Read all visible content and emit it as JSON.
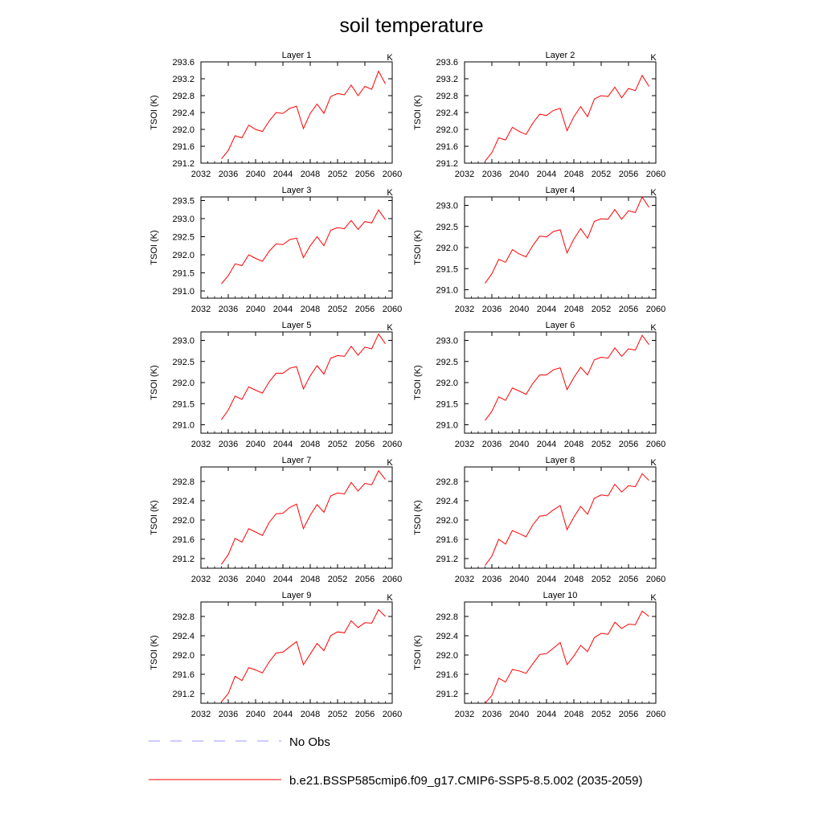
{
  "title": "soil temperature",
  "legend": [
    {
      "label": "No Obs",
      "color": "#9999ff",
      "style": "dashed"
    },
    {
      "label": "b.e21.BSSP585cmip6.f09_g17.CMIP6-SSP5-8.5.002 (2035-2059)",
      "color": "#ff0000",
      "style": "solid"
    }
  ],
  "chart_data": [
    {
      "type": "line",
      "title": "Layer 1",
      "units": "K",
      "ylabel": "TSOI  (K)",
      "xlim": [
        2032,
        2060
      ],
      "ylim": [
        291.2,
        293.6
      ],
      "xticks": [
        2032,
        2036,
        2040,
        2044,
        2048,
        2052,
        2056,
        2060
      ],
      "yticks": [
        "291.2",
        "291.6",
        "292.0",
        "292.4",
        "292.8",
        "293.2",
        "293.6"
      ],
      "x": [
        2035,
        2036,
        2037,
        2038,
        2039,
        2040,
        2041,
        2042,
        2043,
        2044,
        2045,
        2046,
        2047,
        2048,
        2049,
        2050,
        2051,
        2052,
        2053,
        2054,
        2055,
        2056,
        2057,
        2058,
        2059
      ],
      "series": [
        {
          "name": "b.e21.BSSP585cmip6.f09_g17.CMIP6-SSP5-8.5.002 (2035-2059)",
          "color": "#ff0000",
          "values": [
            291.3,
            291.5,
            291.85,
            291.8,
            292.1,
            292.0,
            291.95,
            292.2,
            292.4,
            292.38,
            292.5,
            292.55,
            292.02,
            292.38,
            292.6,
            292.38,
            292.78,
            292.85,
            292.82,
            293.05,
            292.8,
            293.02,
            292.95,
            293.38,
            293.08
          ]
        }
      ]
    },
    {
      "type": "line",
      "title": "Layer 2",
      "units": "K",
      "ylabel": "TSOI  (K)",
      "xlim": [
        2032,
        2060
      ],
      "ylim": [
        291.2,
        293.6
      ],
      "xticks": [
        2032,
        2036,
        2040,
        2044,
        2048,
        2052,
        2056,
        2060
      ],
      "yticks": [
        "291.2",
        "291.6",
        "292.0",
        "292.4",
        "292.8",
        "293.2",
        "293.6"
      ],
      "x": [
        2035,
        2036,
        2037,
        2038,
        2039,
        2040,
        2041,
        2042,
        2043,
        2044,
        2045,
        2046,
        2047,
        2048,
        2049,
        2050,
        2051,
        2052,
        2053,
        2054,
        2055,
        2056,
        2057,
        2058,
        2059
      ],
      "series": [
        {
          "name": "b.e21.BSSP585cmip6.f09_g17.CMIP6-SSP5-8.5.002 (2035-2059)",
          "color": "#ff0000",
          "values": [
            291.25,
            291.45,
            291.8,
            291.75,
            292.05,
            291.95,
            291.88,
            292.15,
            292.36,
            292.33,
            292.45,
            292.5,
            291.97,
            292.3,
            292.54,
            292.3,
            292.72,
            292.8,
            292.78,
            293.0,
            292.75,
            292.97,
            292.92,
            293.28,
            293.02
          ]
        }
      ]
    },
    {
      "type": "line",
      "title": "Layer 3",
      "units": "K",
      "ylabel": "TSOI  (K)",
      "xlim": [
        2032,
        2060
      ],
      "ylim": [
        290.8,
        293.6
      ],
      "xticks": [
        2032,
        2036,
        2040,
        2044,
        2048,
        2052,
        2056,
        2060
      ],
      "yticks": [
        "291.0",
        "291.5",
        "292.0",
        "292.5",
        "293.0",
        "293.5"
      ],
      "x": [
        2035,
        2036,
        2037,
        2038,
        2039,
        2040,
        2041,
        2042,
        2043,
        2044,
        2045,
        2046,
        2047,
        2048,
        2049,
        2050,
        2051,
        2052,
        2053,
        2054,
        2055,
        2056,
        2057,
        2058,
        2059
      ],
      "series": [
        {
          "name": "b.e21.BSSP585cmip6.f09_g17.CMIP6-SSP5-8.5.002 (2035-2059)",
          "color": "#ff0000",
          "values": [
            291.2,
            291.42,
            291.75,
            291.7,
            292.0,
            291.9,
            291.82,
            292.1,
            292.3,
            292.28,
            292.42,
            292.46,
            291.92,
            292.25,
            292.5,
            292.25,
            292.68,
            292.75,
            292.72,
            292.95,
            292.7,
            292.92,
            292.88,
            293.24,
            292.97
          ]
        }
      ]
    },
    {
      "type": "line",
      "title": "Layer 4",
      "units": "K",
      "ylabel": "TSOI  (K)",
      "xlim": [
        2032,
        2060
      ],
      "ylim": [
        290.8,
        293.2
      ],
      "xticks": [
        2032,
        2036,
        2040,
        2044,
        2048,
        2052,
        2056,
        2060
      ],
      "yticks": [
        "291.0",
        "291.5",
        "292.0",
        "292.5",
        "293.0"
      ],
      "x": [
        2035,
        2036,
        2037,
        2038,
        2039,
        2040,
        2041,
        2042,
        2043,
        2044,
        2045,
        2046,
        2047,
        2048,
        2049,
        2050,
        2051,
        2052,
        2053,
        2054,
        2055,
        2056,
        2057,
        2058,
        2059
      ],
      "series": [
        {
          "name": "b.e21.BSSP585cmip6.f09_g17.CMIP6-SSP5-8.5.002 (2035-2059)",
          "color": "#ff0000",
          "values": [
            291.15,
            291.38,
            291.72,
            291.65,
            291.95,
            291.85,
            291.78,
            292.05,
            292.27,
            292.25,
            292.38,
            292.42,
            291.87,
            292.2,
            292.45,
            292.22,
            292.62,
            292.68,
            292.67,
            292.9,
            292.67,
            292.87,
            292.83,
            293.2,
            292.95
          ]
        }
      ]
    },
    {
      "type": "line",
      "title": "Layer 5",
      "units": "K",
      "ylabel": "TSOI  (K)",
      "xlim": [
        2032,
        2060
      ],
      "ylim": [
        290.8,
        293.2
      ],
      "xticks": [
        2032,
        2036,
        2040,
        2044,
        2048,
        2052,
        2056,
        2060
      ],
      "yticks": [
        "291.0",
        "291.5",
        "292.0",
        "292.5",
        "293.0"
      ],
      "x": [
        2035,
        2036,
        2037,
        2038,
        2039,
        2040,
        2041,
        2042,
        2043,
        2044,
        2045,
        2046,
        2047,
        2048,
        2049,
        2050,
        2051,
        2052,
        2053,
        2054,
        2055,
        2056,
        2057,
        2058,
        2059
      ],
      "series": [
        {
          "name": "b.e21.BSSP585cmip6.f09_g17.CMIP6-SSP5-8.5.002 (2035-2059)",
          "color": "#ff0000",
          "values": [
            291.12,
            291.35,
            291.68,
            291.6,
            291.9,
            291.82,
            291.75,
            292.02,
            292.22,
            292.22,
            292.34,
            292.38,
            291.85,
            292.16,
            292.4,
            292.2,
            292.58,
            292.64,
            292.62,
            292.86,
            292.65,
            292.84,
            292.8,
            293.15,
            292.92
          ]
        }
      ]
    },
    {
      "type": "line",
      "title": "Layer 6",
      "units": "K",
      "ylabel": "TSOI  (K)",
      "xlim": [
        2032,
        2060
      ],
      "ylim": [
        290.8,
        293.2
      ],
      "xticks": [
        2032,
        2036,
        2040,
        2044,
        2048,
        2052,
        2056,
        2060
      ],
      "yticks": [
        "291.0",
        "291.5",
        "292.0",
        "292.5",
        "293.0"
      ],
      "x": [
        2035,
        2036,
        2037,
        2038,
        2039,
        2040,
        2041,
        2042,
        2043,
        2044,
        2045,
        2046,
        2047,
        2048,
        2049,
        2050,
        2051,
        2052,
        2053,
        2054,
        2055,
        2056,
        2057,
        2058,
        2059
      ],
      "series": [
        {
          "name": "b.e21.BSSP585cmip6.f09_g17.CMIP6-SSP5-8.5.002 (2035-2059)",
          "color": "#ff0000",
          "values": [
            291.1,
            291.32,
            291.66,
            291.58,
            291.87,
            291.8,
            291.72,
            291.98,
            292.18,
            292.18,
            292.3,
            292.35,
            291.83,
            292.12,
            292.36,
            292.18,
            292.54,
            292.6,
            292.58,
            292.82,
            292.62,
            292.8,
            292.77,
            293.12,
            292.9
          ]
        }
      ]
    },
    {
      "type": "line",
      "title": "Layer 7",
      "units": "K",
      "ylabel": "TSOI  (K)",
      "xlim": [
        2032,
        2060
      ],
      "ylim": [
        291.0,
        293.1
      ],
      "xticks": [
        2032,
        2036,
        2040,
        2044,
        2048,
        2052,
        2056,
        2060
      ],
      "yticks": [
        "291.2",
        "291.6",
        "292.0",
        "292.4",
        "292.8"
      ],
      "x": [
        2035,
        2036,
        2037,
        2038,
        2039,
        2040,
        2041,
        2042,
        2043,
        2044,
        2045,
        2046,
        2047,
        2048,
        2049,
        2050,
        2051,
        2052,
        2053,
        2054,
        2055,
        2056,
        2057,
        2058,
        2059
      ],
      "series": [
        {
          "name": "b.e21.BSSP585cmip6.f09_g17.CMIP6-SSP5-8.5.002 (2035-2059)",
          "color": "#ff0000",
          "values": [
            291.08,
            291.28,
            291.62,
            291.54,
            291.82,
            291.75,
            291.68,
            291.95,
            292.13,
            292.14,
            292.26,
            292.33,
            291.82,
            292.1,
            292.32,
            292.16,
            292.5,
            292.56,
            292.54,
            292.78,
            292.6,
            292.76,
            292.73,
            293.02,
            292.84
          ]
        }
      ]
    },
    {
      "type": "line",
      "title": "Layer 8",
      "units": "K",
      "ylabel": "TSOI  (K)",
      "xlim": [
        2032,
        2060
      ],
      "ylim": [
        291.0,
        293.1
      ],
      "xticks": [
        2032,
        2036,
        2040,
        2044,
        2048,
        2052,
        2056,
        2060
      ],
      "yticks": [
        "291.2",
        "291.6",
        "292.0",
        "292.4",
        "292.8"
      ],
      "x": [
        2035,
        2036,
        2037,
        2038,
        2039,
        2040,
        2041,
        2042,
        2043,
        2044,
        2045,
        2046,
        2047,
        2048,
        2049,
        2050,
        2051,
        2052,
        2053,
        2054,
        2055,
        2056,
        2057,
        2058,
        2059
      ],
      "series": [
        {
          "name": "b.e21.BSSP585cmip6.f09_g17.CMIP6-SSP5-8.5.002 (2035-2059)",
          "color": "#ff0000",
          "values": [
            291.06,
            291.25,
            291.6,
            291.5,
            291.78,
            291.72,
            291.65,
            291.9,
            292.08,
            292.1,
            292.21,
            292.3,
            291.8,
            292.06,
            292.28,
            292.12,
            292.45,
            292.52,
            292.5,
            292.74,
            292.58,
            292.71,
            292.69,
            292.96,
            292.82
          ]
        }
      ]
    },
    {
      "type": "line",
      "title": "Layer 9",
      "units": "K",
      "ylabel": "TSOI  (K)",
      "xlim": [
        2032,
        2060
      ],
      "ylim": [
        291.0,
        293.1
      ],
      "xticks": [
        2032,
        2036,
        2040,
        2044,
        2048,
        2052,
        2056,
        2060
      ],
      "yticks": [
        "291.2",
        "291.6",
        "292.0",
        "292.4",
        "292.8"
      ],
      "x": [
        2035,
        2036,
        2037,
        2038,
        2039,
        2040,
        2041,
        2042,
        2043,
        2044,
        2045,
        2046,
        2047,
        2048,
        2049,
        2050,
        2051,
        2052,
        2053,
        2054,
        2055,
        2056,
        2057,
        2058,
        2059
      ],
      "series": [
        {
          "name": "b.e21.BSSP585cmip6.f09_g17.CMIP6-SSP5-8.5.002 (2035-2059)",
          "color": "#ff0000",
          "values": [
            291.03,
            291.2,
            291.56,
            291.47,
            291.74,
            291.69,
            291.63,
            291.86,
            292.04,
            292.06,
            292.17,
            292.28,
            291.8,
            292.02,
            292.24,
            292.09,
            292.4,
            292.48,
            292.46,
            292.71,
            292.57,
            292.67,
            292.66,
            292.94,
            292.8
          ]
        }
      ]
    },
    {
      "type": "line",
      "title": "Layer 10",
      "units": "K",
      "ylabel": "TSOI  (K)",
      "xlim": [
        2032,
        2060
      ],
      "ylim": [
        291.0,
        293.1
      ],
      "xticks": [
        2032,
        2036,
        2040,
        2044,
        2048,
        2052,
        2056,
        2060
      ],
      "yticks": [
        "291.2",
        "291.6",
        "292.0",
        "292.4",
        "292.8"
      ],
      "x": [
        2035,
        2036,
        2037,
        2038,
        2039,
        2040,
        2041,
        2042,
        2043,
        2044,
        2045,
        2046,
        2047,
        2048,
        2049,
        2050,
        2051,
        2052,
        2053,
        2054,
        2055,
        2056,
        2057,
        2058,
        2059
      ],
      "series": [
        {
          "name": "b.e21.BSSP585cmip6.f09_g17.CMIP6-SSP5-8.5.002 (2035-2059)",
          "color": "#ff0000",
          "values": [
            291.0,
            291.16,
            291.52,
            291.44,
            291.7,
            291.67,
            291.62,
            291.82,
            292.01,
            292.03,
            292.14,
            292.26,
            291.8,
            291.98,
            292.2,
            292.07,
            292.36,
            292.45,
            292.43,
            292.68,
            292.55,
            292.64,
            292.63,
            292.91,
            292.8
          ]
        }
      ]
    }
  ]
}
